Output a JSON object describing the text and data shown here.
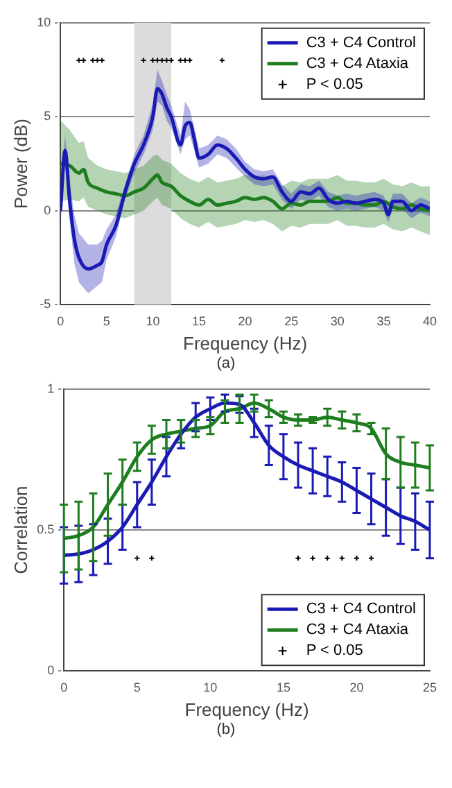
{
  "chart_data": [
    {
      "type": "line",
      "xlabel": "Frequency (Hz)",
      "ylabel": "Power (dB)",
      "annotations": [
        "(a)"
      ],
      "xlim": [
        0,
        40
      ],
      "ylim": [
        -5,
        10
      ],
      "xticks": [
        0,
        5,
        10,
        15,
        20,
        25,
        30,
        35,
        40
      ],
      "yticks": [
        -5,
        0,
        5,
        10
      ],
      "grid": "y",
      "legend": "top right",
      "bands": [
        {
          "axis": "x",
          "from": 8,
          "to": 12,
          "color": "#dcdcdc"
        }
      ],
      "series": [
        {
          "name": "C3 + C4 Control",
          "color": "#1a1ab4",
          "x": [
            0,
            0.5,
            1,
            1.5,
            2,
            3,
            4,
            4.5,
            5,
            6,
            7,
            8,
            9,
            10,
            10.5,
            11,
            11.5,
            12,
            13,
            13.5,
            14,
            14.5,
            15,
            16,
            17,
            18,
            19,
            20,
            21,
            22,
            23,
            24,
            25,
            26,
            27,
            28,
            29,
            30,
            31,
            32,
            33,
            34,
            35,
            35.5,
            36,
            37,
            38,
            39,
            40
          ],
          "values": [
            0,
            3.2,
            0.5,
            -1.5,
            -2.5,
            -3.1,
            -2.9,
            -2.7,
            -1.8,
            -0.8,
            1,
            2.5,
            3.5,
            5,
            6.5,
            6.2,
            5.5,
            5,
            3.5,
            4.5,
            4.7,
            3.8,
            2.8,
            3,
            3.5,
            3.3,
            2.8,
            2.2,
            1.8,
            1.7,
            1.8,
            1,
            0.5,
            1,
            0.9,
            1.2,
            0.6,
            0.4,
            0.5,
            0.4,
            0.5,
            0.6,
            0.4,
            -0.2,
            0.5,
            0.5,
            0,
            0.3,
            0.1
          ],
          "lower": [
            -0.8,
            2.4,
            -0.5,
            -2.8,
            -3.8,
            -4.4,
            -4,
            -3.8,
            -2.6,
            -1.4,
            0.6,
            2,
            3,
            4.3,
            5.8,
            5.6,
            4.8,
            4.4,
            3,
            3.8,
            4,
            3.2,
            2.3,
            2.5,
            3,
            2.8,
            2.3,
            1.8,
            1.4,
            1.3,
            1.4,
            0.6,
            0.1,
            0.6,
            0.5,
            0.8,
            0.2,
            0,
            0.1,
            0,
            0.1,
            0.2,
            0,
            -0.6,
            0.1,
            0.1,
            -0.4,
            -0.1,
            -0.3
          ],
          "upper": [
            0.8,
            4,
            1.5,
            -0.2,
            -1.2,
            -1.8,
            -1.8,
            -1.6,
            -1,
            -0.2,
            1.4,
            3,
            4,
            5.7,
            7.5,
            6.9,
            6.2,
            5.6,
            4,
            5.8,
            5.4,
            4.4,
            3.3,
            3.5,
            4,
            3.8,
            3.3,
            2.6,
            2.2,
            2.1,
            2.2,
            1.4,
            0.9,
            1.4,
            1.3,
            1.6,
            1,
            0.8,
            0.9,
            0.8,
            0.9,
            1,
            0.8,
            0.2,
            0.9,
            0.9,
            0.4,
            0.7,
            0.5
          ]
        },
        {
          "name": "C3 + C4 Ataxia",
          "color": "#1e7d1e",
          "x": [
            0,
            1,
            2,
            2.5,
            3,
            4,
            5,
            6,
            7,
            8,
            9,
            10,
            10.5,
            11,
            12,
            13,
            14,
            15,
            16,
            17,
            18,
            19,
            20,
            21,
            22,
            23,
            24,
            25,
            26,
            27,
            28,
            29,
            30,
            31,
            32,
            33,
            34,
            35,
            36,
            37,
            38,
            39,
            40
          ],
          "values": [
            2.5,
            2.4,
            2,
            2.2,
            1.5,
            1.2,
            1,
            0.9,
            0.8,
            1,
            1.2,
            1.7,
            1.9,
            1.5,
            1.3,
            0.8,
            0.5,
            0.3,
            0.6,
            0.3,
            0.4,
            0.5,
            0.7,
            0.6,
            0.7,
            0.5,
            0.1,
            0.4,
            0.3,
            0.5,
            0.5,
            0.5,
            0.7,
            0.4,
            0.4,
            0.3,
            0.3,
            0.5,
            0.2,
            0.1,
            0.3,
            0.1,
            0
          ],
          "lower": [
            0.5,
            0.6,
            0.5,
            0.7,
            0.2,
            0,
            -0.2,
            -0.3,
            -0.4,
            -0.2,
            0,
            0.5,
            0.7,
            0.3,
            0.1,
            -0.4,
            -0.7,
            -0.9,
            -0.6,
            -0.9,
            -0.8,
            -0.7,
            -0.5,
            -0.6,
            -0.5,
            -0.7,
            -1.1,
            -0.8,
            -0.9,
            -0.7,
            -0.7,
            -0.7,
            -0.5,
            -0.8,
            -0.8,
            -0.9,
            -0.9,
            -0.7,
            -1,
            -1.1,
            -0.9,
            -1.1,
            -1.3
          ],
          "upper": [
            4.8,
            4.3,
            3.6,
            3.7,
            2.8,
            2.4,
            2.2,
            2.1,
            2,
            2.2,
            2.4,
            2.9,
            3,
            2.7,
            2.5,
            2,
            1.7,
            1.5,
            1.8,
            1.5,
            1.6,
            1.7,
            1.9,
            1.8,
            1.9,
            1.7,
            1.3,
            1.6,
            1.5,
            1.7,
            1.7,
            1.7,
            1.9,
            1.6,
            1.6,
            1.5,
            1.5,
            1.7,
            1.4,
            1.3,
            1.5,
            1.3,
            1.3
          ]
        },
        {
          "name": "P < 0.05",
          "type": "scatter",
          "color": "#000000",
          "marker": "cross",
          "x": [
            2,
            2.5,
            3.5,
            4,
            4.5,
            9,
            10,
            10.5,
            11,
            11.5,
            12,
            13,
            13.5,
            14,
            17.5
          ],
          "values": [
            8,
            8,
            8,
            8,
            8,
            8,
            8,
            8,
            8,
            8,
            8,
            8,
            8,
            8,
            8
          ]
        }
      ]
    },
    {
      "type": "line",
      "xlabel": "Frequency (Hz)",
      "ylabel": "Correlation",
      "annotations": [
        "(b)"
      ],
      "xlim": [
        0,
        25
      ],
      "ylim": [
        0,
        1
      ],
      "xticks": [
        0,
        5,
        10,
        15,
        20,
        25
      ],
      "yticks": [
        0,
        0.5,
        1
      ],
      "grid": "y",
      "legend": "bottom right",
      "series": [
        {
          "name": "C3 + C4 Control",
          "color": "#1a1ab4",
          "x": [
            0,
            1,
            2,
            3,
            4,
            5,
            6,
            7,
            8,
            9,
            10,
            11,
            12,
            13,
            14,
            15,
            16,
            17,
            18,
            19,
            20,
            21,
            22,
            23,
            24,
            25
          ],
          "values": [
            0.41,
            0.415,
            0.43,
            0.46,
            0.51,
            0.59,
            0.67,
            0.76,
            0.84,
            0.9,
            0.93,
            0.95,
            0.945,
            0.88,
            0.8,
            0.76,
            0.73,
            0.71,
            0.69,
            0.67,
            0.64,
            0.61,
            0.58,
            0.55,
            0.53,
            0.5
          ],
          "errors": [
            0.1,
            0.1,
            0.09,
            0.08,
            0.08,
            0.08,
            0.08,
            0.07,
            0.05,
            0.05,
            0.04,
            0.03,
            0.03,
            0.05,
            0.07,
            0.08,
            0.08,
            0.08,
            0.07,
            0.07,
            0.08,
            0.09,
            0.1,
            0.1,
            0.1,
            0.1
          ]
        },
        {
          "name": "C3 + C4 Ataxia",
          "color": "#1e7d1e",
          "x": [
            0,
            1,
            2,
            3,
            4,
            5,
            6,
            7,
            8,
            9,
            10,
            11,
            12,
            13,
            14,
            15,
            16,
            17,
            18,
            19,
            20,
            21,
            22,
            23,
            24,
            25
          ],
          "values": [
            0.47,
            0.48,
            0.51,
            0.59,
            0.67,
            0.76,
            0.82,
            0.84,
            0.85,
            0.86,
            0.87,
            0.92,
            0.93,
            0.95,
            0.93,
            0.9,
            0.89,
            0.89,
            0.9,
            0.89,
            0.88,
            0.86,
            0.77,
            0.74,
            0.73,
            0.72
          ],
          "errors": [
            0.12,
            0.12,
            0.12,
            0.11,
            0.08,
            0.05,
            0.05,
            0.05,
            0.04,
            0.03,
            0.03,
            0.04,
            0.05,
            0.03,
            0.03,
            0.02,
            0.02,
            0.01,
            0.03,
            0.03,
            0.03,
            0.02,
            0.09,
            0.09,
            0.08,
            0.08
          ]
        },
        {
          "name": "P < 0.05",
          "type": "scatter",
          "color": "#000000",
          "marker": "cross",
          "x": [
            5,
            6,
            16,
            17,
            18,
            19,
            20,
            21
          ],
          "values": [
            0.4,
            0.4,
            0.4,
            0.4,
            0.4,
            0.4,
            0.4,
            0.4
          ]
        }
      ]
    }
  ]
}
